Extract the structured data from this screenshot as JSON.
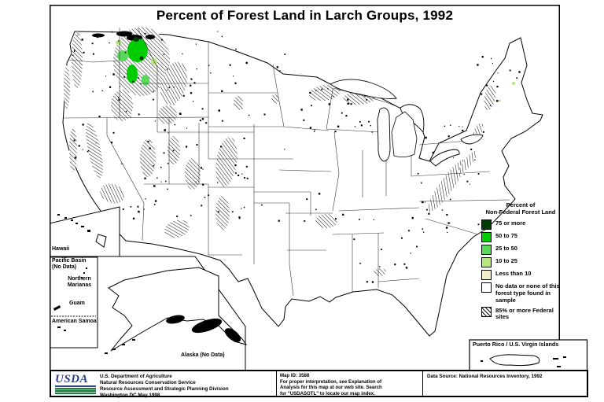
{
  "title": "Percent of Forest Land in Larch Groups, 1992",
  "legend": {
    "title_line1": "Percent of",
    "title_line2": "Non-Federal Forest Land",
    "items": [
      {
        "label": "75 or more",
        "color": "#003d00"
      },
      {
        "label": "50 to 75",
        "color": "#00cc00"
      },
      {
        "label": "25 to 50",
        "color": "#59d959"
      },
      {
        "label": "10 to 25",
        "color": "#b5e878"
      },
      {
        "label": "Less than 10",
        "color": "#efeecb"
      },
      {
        "label": "No data or none of this forest type found in sample",
        "color": "#ffffff"
      },
      {
        "label": "85% or more Federal sites",
        "color": "hatch"
      }
    ]
  },
  "insets": {
    "hawaii": "Hawaii",
    "pacific_basin_line1": "Pacific Basin",
    "pacific_basin_line2": "(No Data)",
    "northern_marianas": "Northern Marianas",
    "guam": "Guam",
    "american_samoa": "American Samoa",
    "alaska": "Alaska (No Data)",
    "puerto_rico": "Puerto Rico / U.S. Virgin Islands"
  },
  "footer": {
    "logo_text": "USDA",
    "agency_lines": [
      "U.S. Department of Agriculture",
      "Natural Resources Conservation Service",
      "Resource Assessment and Strategic Planning Division",
      "Washington DC   May 1998"
    ],
    "map_id": "Map ID: 3588",
    "note_lines": [
      "For proper interpretation, see Explanation of",
      "Analysis for this map at our web site.  Search",
      "for \"USDASOTL\" to locate our map index."
    ],
    "data_source": "Data Source:  National Resources Inventory, 1992"
  }
}
